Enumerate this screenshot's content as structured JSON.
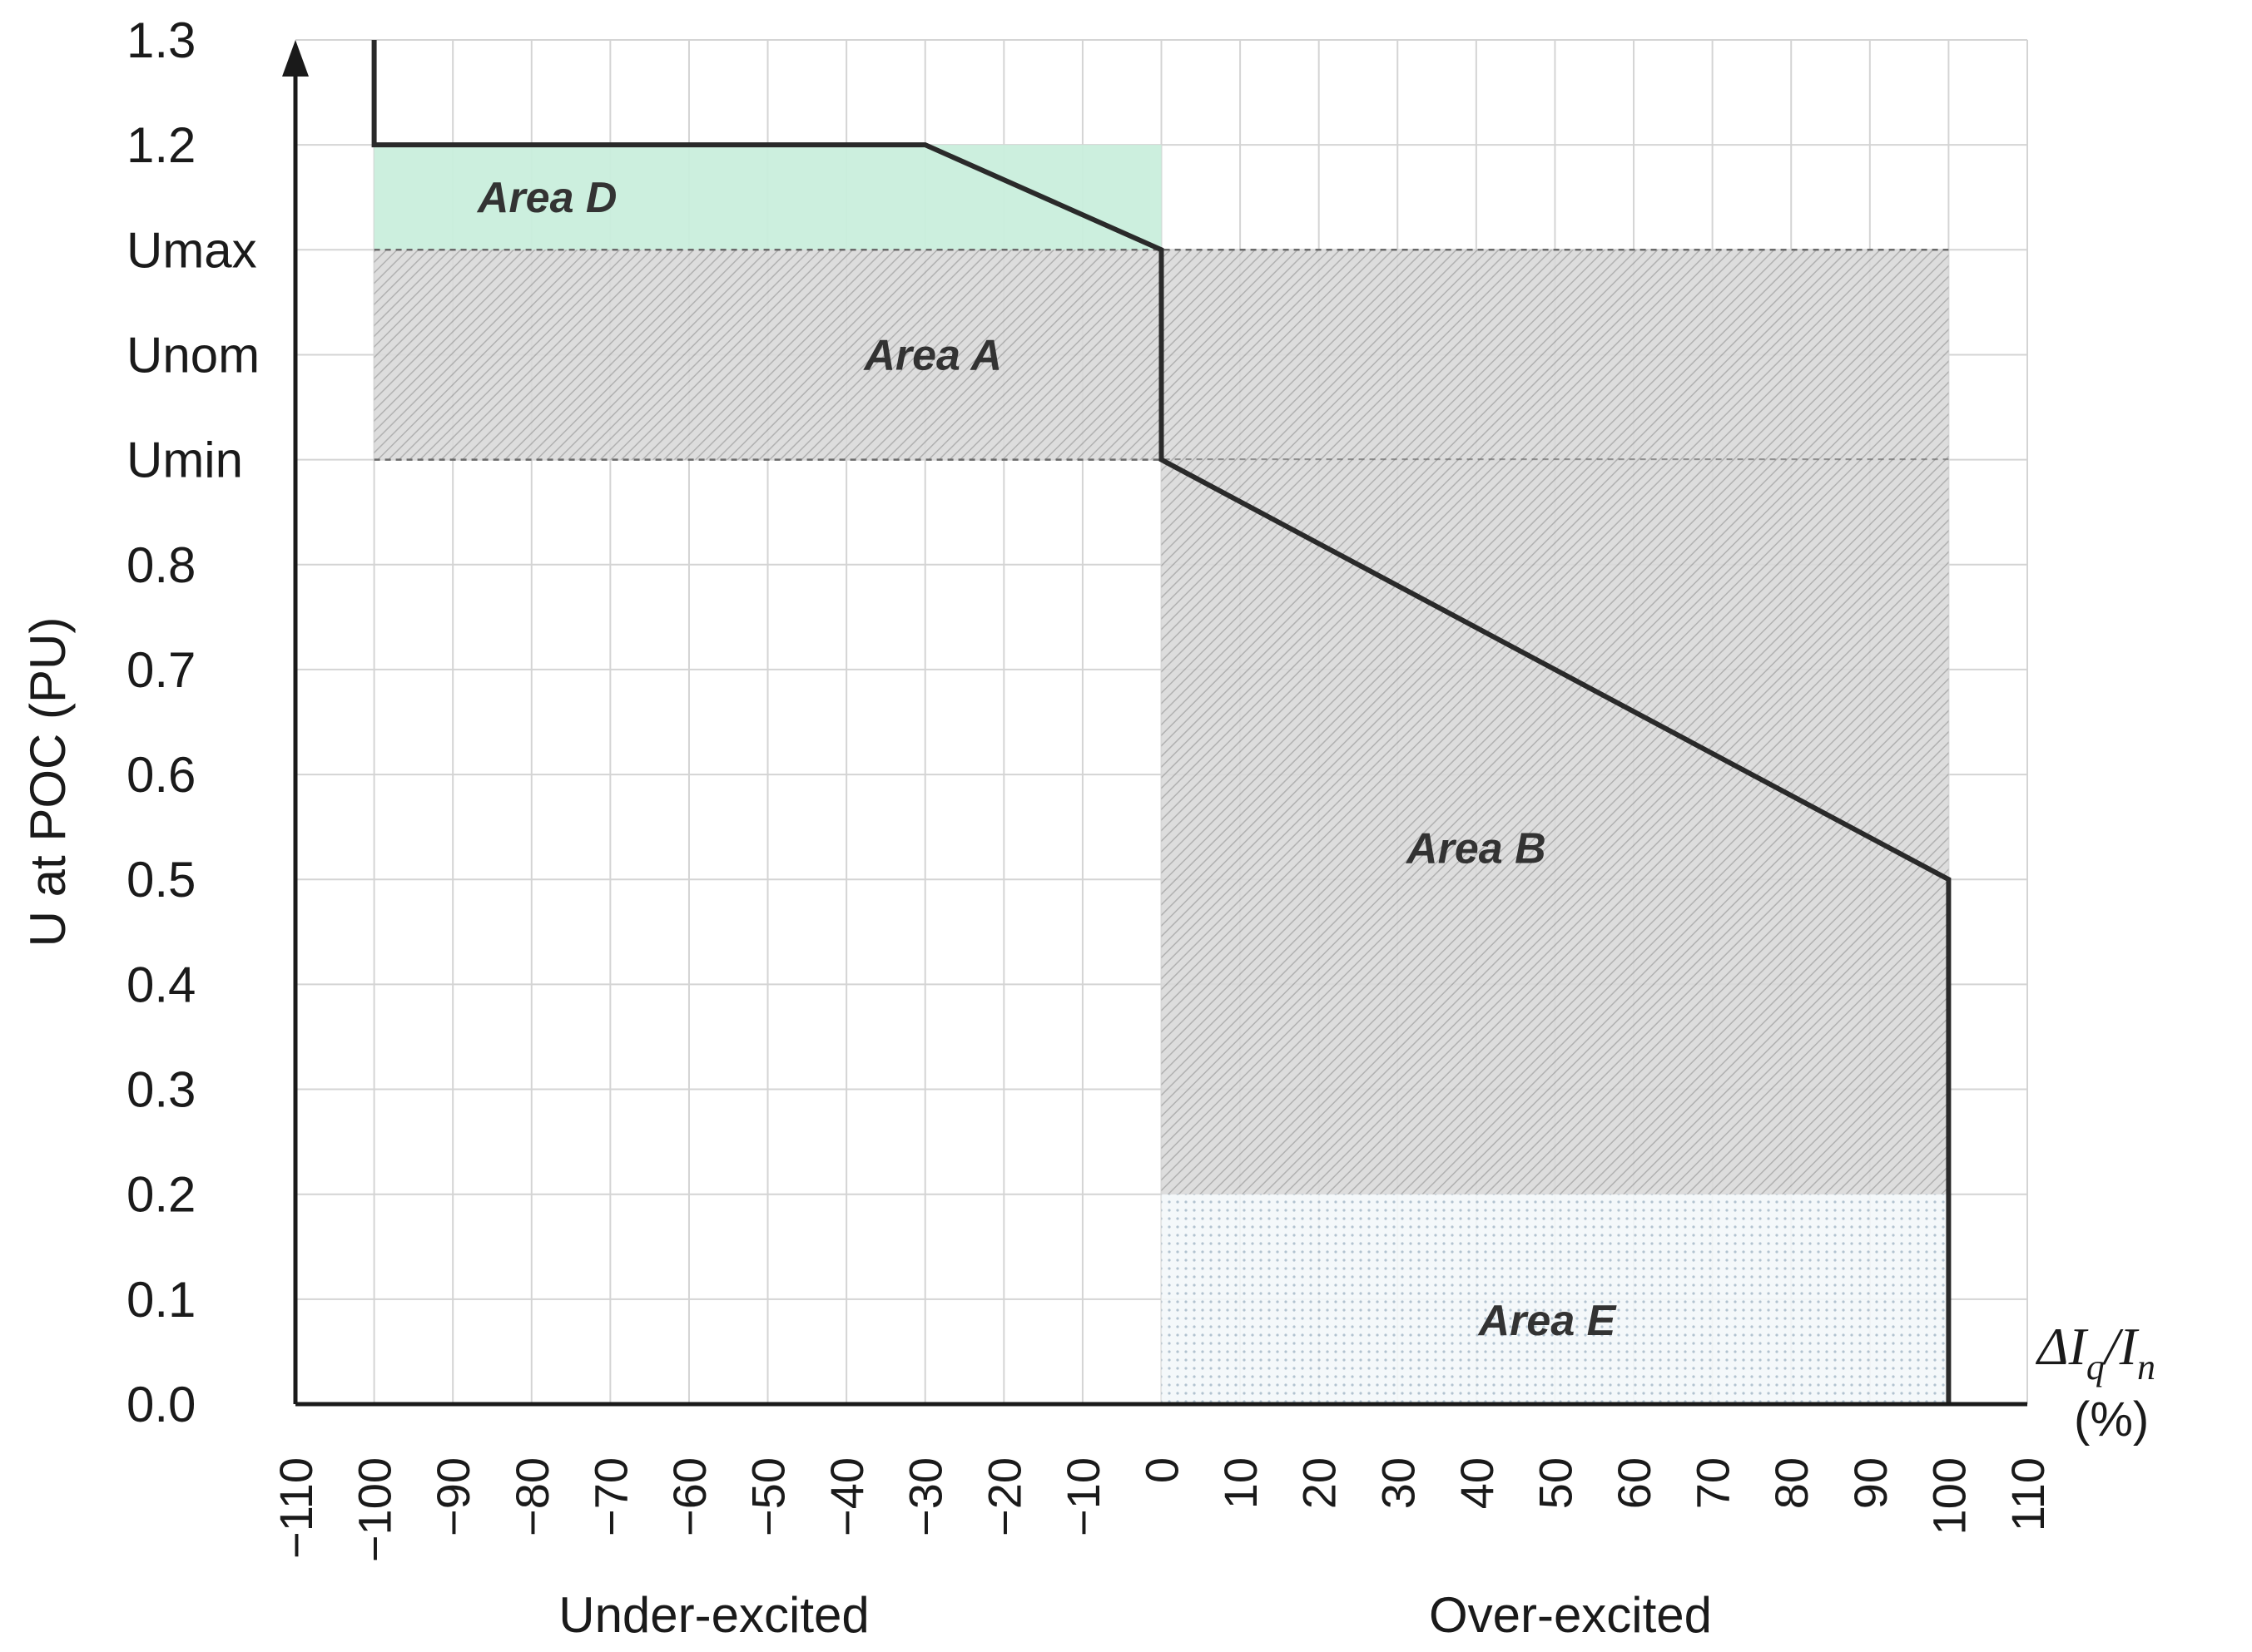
{
  "chart_data": {
    "type": "area",
    "ylabel": "U at POC (PU)",
    "xlabel_parts": {
      "delta": "ΔI",
      "q": "q",
      "slash": "/I",
      "n": "n",
      "unit": "(%)"
    },
    "x_ticks": [
      -110,
      -100,
      -90,
      -80,
      -70,
      -60,
      -50,
      -40,
      -30,
      -20,
      -10,
      0,
      10,
      20,
      30,
      40,
      50,
      60,
      70,
      80,
      90,
      100,
      110
    ],
    "x_tick_labels": [
      "−110",
      "−100",
      "−90",
      "−80",
      "−70",
      "−60",
      "−50",
      "−40",
      "−30",
      "−20",
      "−10",
      "0",
      "10",
      "20",
      "30",
      "40",
      "50",
      "60",
      "70",
      "80",
      "90",
      "100",
      "110"
    ],
    "y_ticks": [
      0.0,
      0.1,
      0.2,
      0.3,
      0.4,
      0.5,
      0.6,
      0.7,
      0.8,
      0.9,
      1.0,
      1.1,
      1.2,
      1.3
    ],
    "y_tick_labels": [
      "0.0",
      "0.1",
      "0.2",
      "0.3",
      "0.4",
      "0.5",
      "0.6",
      "0.7",
      "0.8",
      "Umin",
      "Unom",
      "Umax",
      "1.2",
      "1.3"
    ],
    "xlim": [
      -110,
      110
    ],
    "ylim": [
      0,
      1.3
    ],
    "grid": true,
    "side_labels": {
      "left": "Under-excited",
      "right": "Over-excited"
    },
    "regions": [
      {
        "label": "Area D",
        "x": [
          -100,
          0
        ],
        "y": [
          1.1,
          1.2
        ],
        "fill": "green",
        "color": "#c9eedc",
        "label_at": [
          -78,
          1.15
        ]
      },
      {
        "label": "Area A",
        "x": [
          -100,
          100
        ],
        "y": [
          0.9,
          1.1
        ],
        "fill": "hatch",
        "color": "#b8b8b8",
        "label_at": [
          -29,
          1.0
        ]
      },
      {
        "label": "Area B",
        "x": [
          0,
          100
        ],
        "y": [
          0.2,
          0.9
        ],
        "fill": "hatch",
        "color": "#b8b8b8",
        "label_at": [
          40,
          0.53
        ]
      },
      {
        "label": "Area E",
        "x": [
          0,
          100
        ],
        "y": [
          0.0,
          0.2
        ],
        "fill": "dots",
        "color": "#c8d8e0",
        "label_at": [
          49,
          0.08
        ]
      }
    ],
    "characteristic_line": {
      "x": [
        -100,
        -100,
        -30,
        0,
        0,
        100,
        100
      ],
      "y": [
        1.3,
        1.2,
        1.2,
        1.1,
        0.9,
        0.5,
        0.0
      ],
      "color": "#2a2a2a"
    }
  }
}
